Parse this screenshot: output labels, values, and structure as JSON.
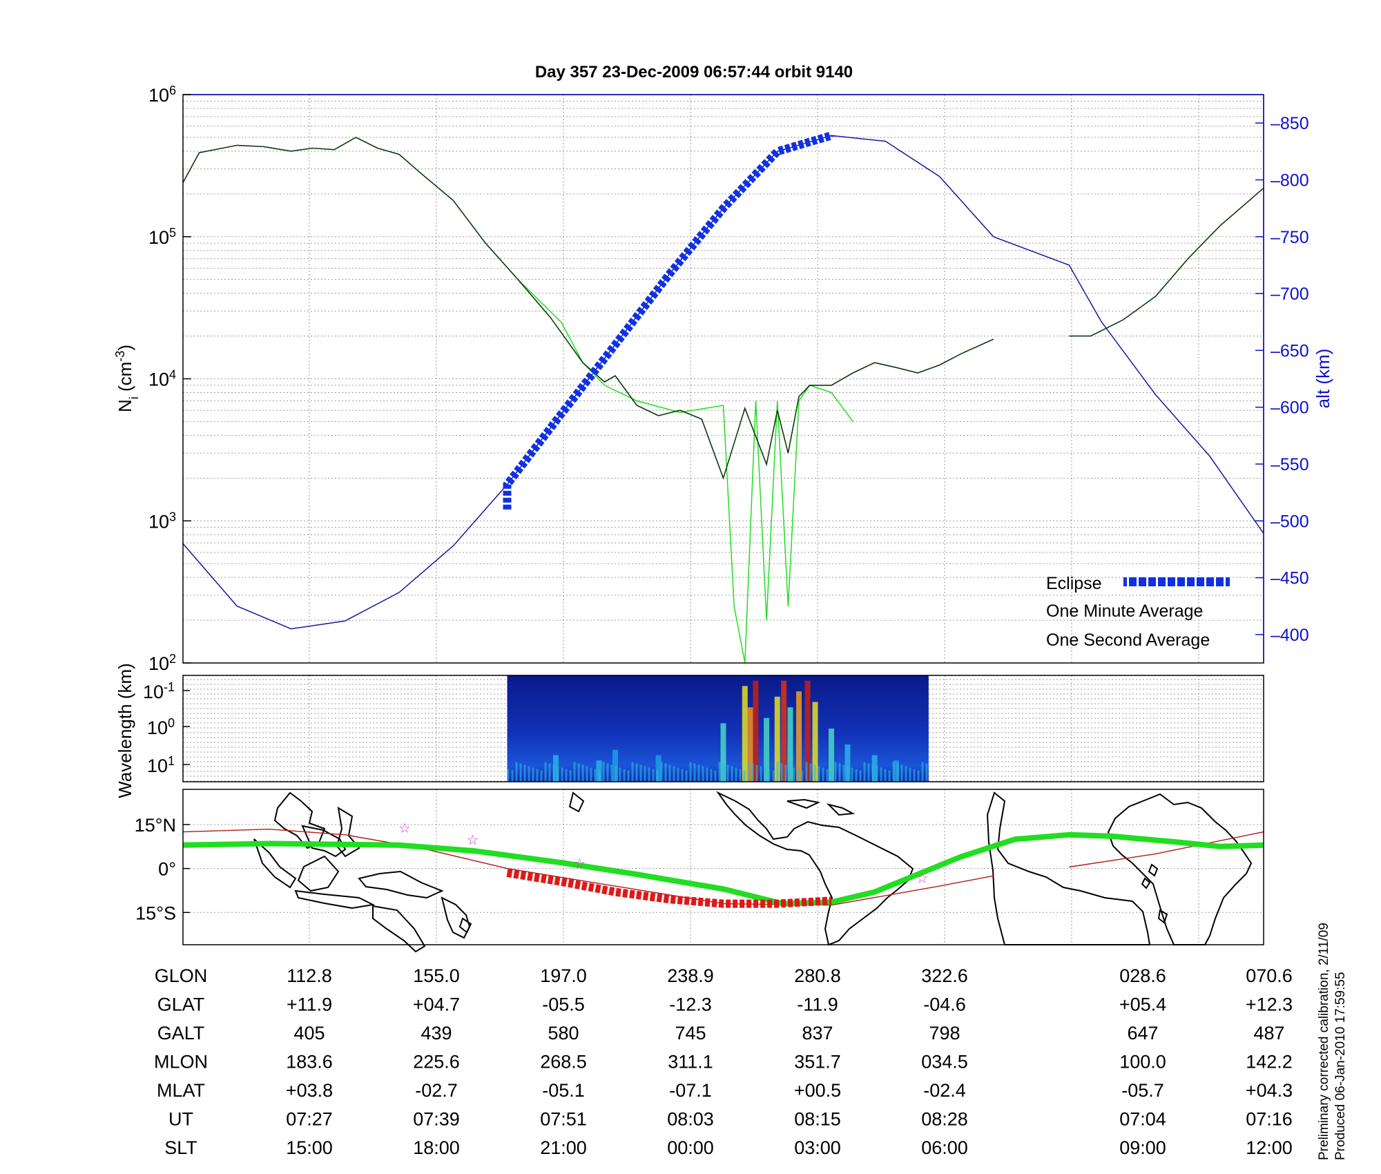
{
  "title": "Day 357  23-Dec-2009 06:57:44   orbit 9140",
  "colors": {
    "altitude_line": "#1818a0",
    "one_minute": "#0a3a0a",
    "one_second": "#22dd22",
    "eclipse": "#1030e6",
    "eclipse_track": "#e01818",
    "track_line": "#b01818",
    "stars": "#cc44cc",
    "right_axis": "#1010cc"
  },
  "chart_data": [
    {
      "type": "line",
      "panel": "ion density and altitude",
      "ylabel_left": "N_i (cm^-3)",
      "ylabel_right": "alt (km)",
      "yscale_left": "log",
      "ylim_left": [
        100,
        1000000
      ],
      "yticks_left": [
        "10^2",
        "10^3",
        "10^4",
        "10^5",
        "10^6"
      ],
      "ylim_right": [
        375,
        875
      ],
      "yticks_right": [
        400,
        450,
        500,
        550,
        600,
        650,
        700,
        750,
        800,
        850
      ],
      "x_range": [
        0,
        1
      ],
      "grid": true,
      "legend": {
        "placement": "bottom-right",
        "entries": [
          "Eclipse",
          "One Minute Average",
          "One Second Average"
        ]
      },
      "series": [
        {
          "name": "One Minute Average",
          "x": [
            0,
            0.015,
            0.05,
            0.075,
            0.1,
            0.12,
            0.14,
            0.16,
            0.18,
            0.2,
            0.22,
            0.25,
            0.28,
            0.31,
            0.34,
            0.37,
            0.39,
            0.4,
            0.42,
            0.44,
            0.46,
            0.48,
            0.5,
            0.52,
            0.54,
            0.55,
            0.56,
            0.57,
            0.58,
            0.6,
            0.62,
            0.64,
            0.66,
            0.68,
            0.7,
            0.72,
            0.75
          ],
          "y": [
            240000,
            390000,
            440000,
            430000,
            400000,
            420000,
            410000,
            500000,
            420000,
            380000,
            280000,
            180000,
            90000,
            50000,
            27000,
            13000,
            9500,
            10500,
            6500,
            5500,
            6000,
            5200,
            2000,
            6200,
            2500,
            6000,
            3000,
            7500,
            9000,
            9000,
            11000,
            13000,
            12000,
            11000,
            12500,
            15000,
            19000
          ]
        },
        {
          "name": "One Second Average",
          "x": [
            0.31,
            0.35,
            0.37,
            0.39,
            0.42,
            0.46,
            0.5,
            0.51,
            0.52,
            0.53,
            0.54,
            0.55,
            0.56,
            0.57,
            0.58,
            0.6,
            0.62
          ],
          "y": [
            50000,
            25000,
            13000,
            9000,
            7000,
            5800,
            6500,
            250,
            100,
            7000,
            200,
            7000,
            250,
            7000,
            9000,
            8000,
            5000
          ]
        },
        {
          "name": "One Minute Average (second segment)",
          "x": [
            0.82,
            0.84,
            0.87,
            0.9,
            0.93,
            0.96,
            1.0
          ],
          "y": [
            20000,
            20000,
            26000,
            38000,
            70000,
            120000,
            220000
          ]
        },
        {
          "name": "Altitude",
          "x": [
            0,
            0.05,
            0.1,
            0.15,
            0.2,
            0.25,
            0.3,
            0.35,
            0.4,
            0.45,
            0.5,
            0.55,
            0.6,
            0.65,
            0.7,
            0.75,
            0.82,
            0.85,
            0.9,
            0.95,
            1.0
          ],
          "y": [
            480,
            425,
            405,
            412,
            437,
            478,
            532,
            594,
            655,
            717,
            775,
            825,
            839,
            834,
            803,
            750,
            725,
            675,
            611,
            557,
            489
          ]
        },
        {
          "name": "Eclipse",
          "x": [
            0.3,
            0.6
          ],
          "y": [
            510,
            838
          ]
        }
      ]
    },
    {
      "type": "heatmap",
      "panel": "wavelength spectrogram",
      "ylabel": "Wavelength (km)",
      "yticks": [
        "10^-1",
        "10^0",
        "10^1"
      ],
      "data_x_range": [
        0.3,
        0.69
      ]
    },
    {
      "type": "line",
      "panel": "ground track map",
      "yticks": [
        "15°N",
        "0°",
        "15°S"
      ],
      "ylim": [
        -26,
        27
      ],
      "star_markers": [
        {
          "x": 0.205,
          "lat": 14
        },
        {
          "x": 0.268,
          "lat": 10
        },
        {
          "x": 0.367,
          "lat": 2
        },
        {
          "x": 0.684,
          "lat": -3
        }
      ]
    }
  ],
  "table": {
    "rows": [
      {
        "label": "GLON",
        "values": [
          "112.8",
          "155.0",
          "197.0",
          "238.9",
          "280.8",
          "322.6",
          "028.6",
          "070.6"
        ]
      },
      {
        "label": "GLAT",
        "values": [
          "+11.9",
          "+04.7",
          "-05.5",
          "-12.3",
          "-11.9",
          "-04.6",
          "+05.4",
          "+12.3"
        ]
      },
      {
        "label": "GALT",
        "values": [
          "405",
          "439",
          "580",
          "745",
          "837",
          "798",
          "647",
          "487"
        ]
      },
      {
        "label": "MLON",
        "values": [
          "183.6",
          "225.6",
          "268.5",
          "311.1",
          "351.7",
          "034.5",
          "100.0",
          "142.2"
        ]
      },
      {
        "label": "MLAT",
        "values": [
          "+03.8",
          "-02.7",
          "-05.1",
          "-07.1",
          "+00.5",
          "-02.4",
          "-05.7",
          "+04.3"
        ]
      },
      {
        "label": "UT",
        "values": [
          "07:27",
          "07:39",
          "07:51",
          "08:03",
          "08:15",
          "08:28",
          "07:04",
          "07:16"
        ]
      },
      {
        "label": "SLT",
        "values": [
          "15:00",
          "18:00",
          "21:00",
          "00:00",
          "03:00",
          "06:00",
          "09:00",
          "12:00"
        ]
      }
    ]
  },
  "footer": {
    "line1": "Preliminary corrected calibration, 2/11/09",
    "line2": "Produced 06-Jan-2010 17:59:55"
  }
}
